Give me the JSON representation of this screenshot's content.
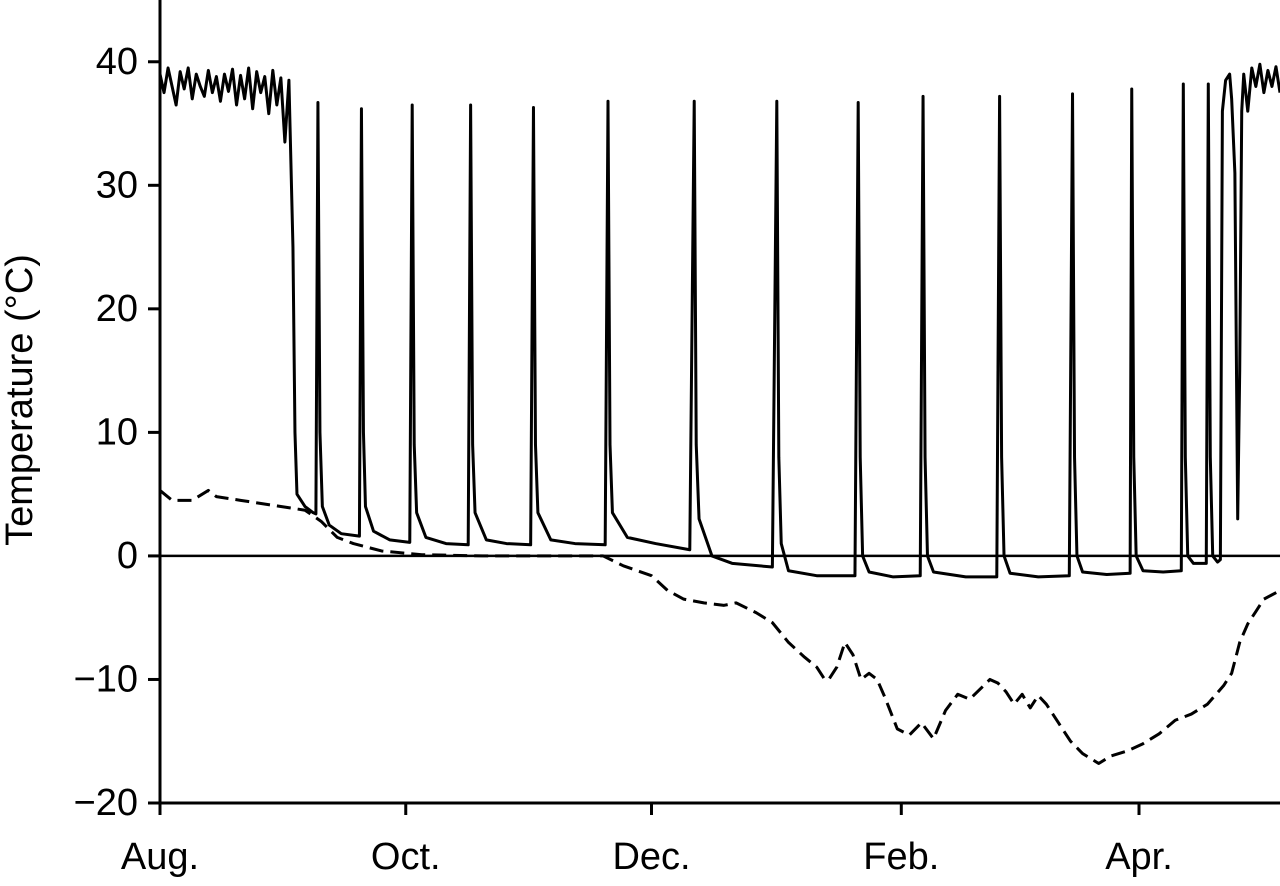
{
  "chart_data": {
    "type": "line",
    "y_label": "Temperature (°C)",
    "xlim": [
      0,
      278
    ],
    "xticks": [
      {
        "value": 0,
        "label": "Aug."
      },
      {
        "value": 61,
        "label": "Oct."
      },
      {
        "value": 122,
        "label": "Dec."
      },
      {
        "value": 184,
        "label": "Feb."
      },
      {
        "value": 243,
        "label": "Apr."
      }
    ],
    "ylim": [
      -20,
      45
    ],
    "yticks": [
      {
        "value": -20,
        "label": "−20"
      },
      {
        "value": -10,
        "label": "−10"
      },
      0,
      10,
      20,
      30,
      40
    ],
    "zero_line": true,
    "series": [
      {
        "color": "#000000",
        "dashed": false,
        "x": [
          0,
          1,
          2,
          3,
          4,
          5,
          6,
          7,
          8,
          9,
          10,
          11,
          12,
          13,
          14,
          15,
          16,
          17,
          18,
          19,
          20,
          21,
          22,
          23,
          24,
          25,
          26,
          27,
          28,
          29,
          30,
          31,
          32,
          33,
          33.5,
          34,
          36,
          38,
          38.7,
          39.2,
          39.7,
          40.3,
          42,
          45,
          49.5,
          50,
          50.5,
          51,
          53,
          57,
          62,
          62.6,
          63.1,
          63.7,
          66,
          71,
          76.5,
          77.1,
          77.6,
          78.2,
          81,
          86,
          92,
          92.7,
          93.2,
          93.8,
          97,
          103,
          110.5,
          111.2,
          111.7,
          112.3,
          116,
          123,
          131.5,
          132.6,
          133.1,
          133.8,
          137,
          142,
          152,
          153.1,
          153.6,
          154.2,
          156,
          163,
          172.5,
          173.3,
          173.8,
          174.4,
          176,
          182,
          188.7,
          189.4,
          189.9,
          190.5,
          192,
          200,
          207.7,
          208.4,
          208.9,
          209.5,
          211,
          218,
          225.7,
          226.5,
          227,
          227.6,
          229,
          235,
          240.8,
          241.2,
          241.7,
          242.3,
          244,
          249,
          253.5,
          254,
          254.5,
          255.1,
          256.5,
          259.7,
          260.2,
          260.7,
          261.3,
          262.5,
          263.2,
          263.7,
          264.5,
          265.5,
          266,
          266.8,
          267.5,
          268,
          268.5,
          269,
          270,
          271,
          272,
          273,
          274,
          275,
          276,
          277,
          278
        ],
        "values": [
          39,
          37.5,
          39.5,
          38,
          36.5,
          39.2,
          37.8,
          39.5,
          37,
          39,
          38,
          37.2,
          39.3,
          37.5,
          38.8,
          36.8,
          39,
          37.6,
          39.4,
          36.5,
          38.9,
          37,
          39.5,
          36.2,
          39.2,
          37.5,
          38.8,
          35.8,
          39.3,
          36.5,
          38.7,
          33.5,
          38.5,
          25,
          10,
          5,
          4,
          3.5,
          3.4,
          36.7,
          10,
          4,
          2.5,
          1.8,
          1.6,
          36.2,
          10,
          4,
          2,
          1.3,
          1.1,
          36.5,
          9,
          3.5,
          1.5,
          1,
          0.9,
          36.5,
          9,
          3.5,
          1.3,
          1,
          0.9,
          36.3,
          9,
          3.5,
          1.3,
          1,
          0.9,
          36.8,
          9,
          3.5,
          1.5,
          1,
          0.5,
          36.8,
          9,
          3,
          0,
          -0.6,
          -0.9,
          36.8,
          8,
          1,
          -1.2,
          -1.6,
          -1.6,
          36.7,
          8,
          0,
          -1.3,
          -1.7,
          -1.6,
          37.2,
          8,
          0,
          -1.3,
          -1.7,
          -1.7,
          37.2,
          8,
          0,
          -1.4,
          -1.7,
          -1.6,
          37.4,
          8,
          0,
          -1.3,
          -1.5,
          -1.4,
          37.8,
          8,
          0,
          -1.2,
          -1.3,
          -1.2,
          38.2,
          8,
          0,
          -0.6,
          -0.6,
          38.2,
          8,
          0,
          -0.5,
          -0.3,
          36,
          38.5,
          39,
          37,
          31,
          3,
          15,
          36,
          39,
          36,
          39.5,
          38,
          39.8,
          37.5,
          39.3,
          38,
          39.6,
          37.5
        ]
      },
      {
        "color": "#000000",
        "dashed": true,
        "x": [
          0,
          3,
          8,
          12,
          14,
          20,
          30,
          36,
          40,
          44,
          48,
          55,
          65,
          80,
          95,
          110,
          115,
          122,
          126,
          130,
          135,
          140,
          143,
          148,
          152,
          156,
          160,
          163,
          165,
          166,
          168,
          170,
          172,
          174,
          176,
          178,
          180,
          183,
          186,
          189,
          192,
          195,
          198,
          201,
          206,
          208,
          210,
          212,
          214,
          216,
          218,
          220,
          223,
          226,
          229,
          233,
          236,
          240,
          244,
          248,
          252,
          256,
          260,
          264,
          266,
          268,
          270,
          272,
          274,
          278
        ],
        "values": [
          5.3,
          4.5,
          4.5,
          5.3,
          4.8,
          4.5,
          4,
          3.7,
          2.8,
          1.5,
          1,
          0.4,
          0.1,
          0,
          0,
          0,
          -0.8,
          -1.6,
          -2.8,
          -3.5,
          -3.8,
          -4,
          -3.8,
          -4.6,
          -5.4,
          -7,
          -8.2,
          -9,
          -10,
          -10,
          -9,
          -7,
          -8,
          -10,
          -9.5,
          -10,
          -11.5,
          -14,
          -14.5,
          -13.5,
          -14.8,
          -12.5,
          -11.2,
          -11.6,
          -10,
          -10.3,
          -11,
          -12,
          -11.2,
          -12.3,
          -11.3,
          -12,
          -13.5,
          -15,
          -16,
          -16.8,
          -16.2,
          -15.8,
          -15.2,
          -14.4,
          -13.3,
          -12.8,
          -12,
          -10.5,
          -9.5,
          -7,
          -5.5,
          -4.5,
          -3.5,
          -2.8
        ]
      }
    ]
  }
}
